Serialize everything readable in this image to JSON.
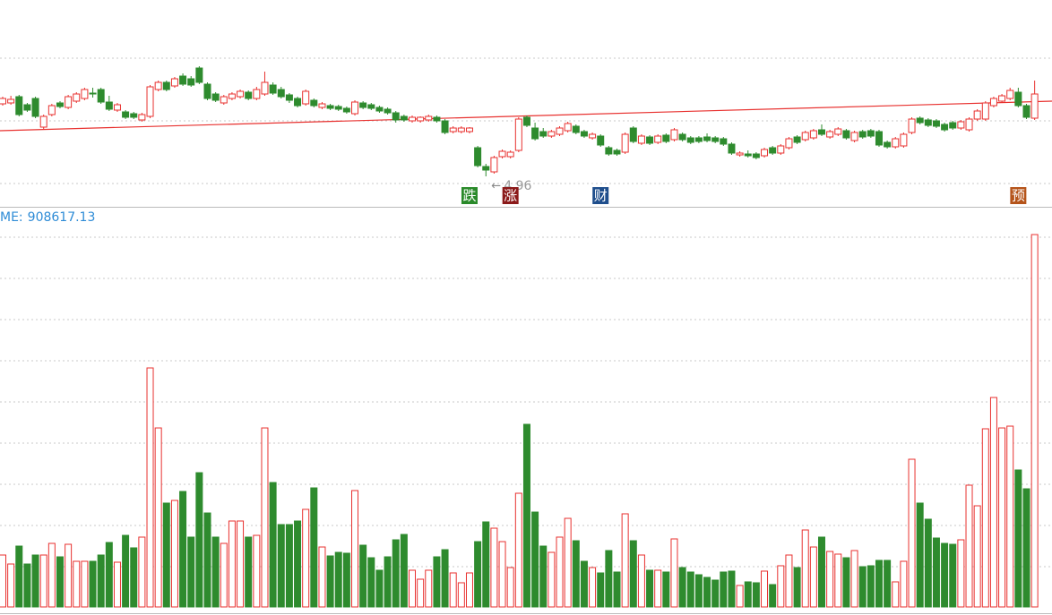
{
  "chart_data": {
    "type": "candlestick",
    "ohlc_order": [
      "open",
      "high",
      "low",
      "close"
    ],
    "up_color": "#e8312f",
    "down_color": "#2e8b2e",
    "trend_color": "#e8312f",
    "ylim": [
      4.61,
      6.93
    ],
    "volume_ylim": [
      0,
      1000000
    ],
    "trend_line": [
      5.47,
      5.8
    ],
    "candles": [
      [
        5.77,
        5.85,
        5.75,
        5.83
      ],
      [
        5.78,
        5.86,
        5.76,
        5.82
      ],
      [
        5.85,
        5.87,
        5.63,
        5.65
      ],
      [
        5.76,
        5.78,
        5.68,
        5.7
      ],
      [
        5.83,
        5.85,
        5.61,
        5.63
      ],
      [
        5.51,
        5.65,
        5.49,
        5.63
      ],
      [
        5.65,
        5.77,
        5.63,
        5.75
      ],
      [
        5.78,
        5.8,
        5.72,
        5.74
      ],
      [
        5.73,
        5.87,
        5.71,
        5.85
      ],
      [
        5.8,
        5.9,
        5.78,
        5.88
      ],
      [
        5.83,
        5.95,
        5.81,
        5.93
      ],
      [
        5.89,
        5.95,
        5.84,
        5.88
      ],
      [
        5.93,
        5.95,
        5.77,
        5.79
      ],
      [
        5.79,
        5.86,
        5.69,
        5.71
      ],
      [
        5.7,
        5.78,
        5.68,
        5.76
      ],
      [
        5.68,
        5.7,
        5.6,
        5.62
      ],
      [
        5.66,
        5.68,
        5.6,
        5.62
      ],
      [
        5.59,
        5.67,
        5.57,
        5.65
      ],
      [
        5.63,
        5.98,
        5.61,
        5.96
      ],
      [
        5.93,
        6.03,
        5.91,
        6.01
      ],
      [
        6.01,
        6.03,
        5.91,
        5.93
      ],
      [
        5.97,
        6.07,
        5.95,
        6.05
      ],
      [
        6.08,
        6.11,
        5.97,
        5.99
      ],
      [
        6.05,
        6.08,
        5.96,
        5.98
      ],
      [
        6.17,
        6.19,
        5.99,
        6.01
      ],
      [
        5.99,
        6.01,
        5.81,
        5.83
      ],
      [
        5.88,
        5.9,
        5.79,
        5.81
      ],
      [
        5.78,
        5.87,
        5.76,
        5.85
      ],
      [
        5.83,
        5.9,
        5.81,
        5.88
      ],
      [
        5.85,
        5.93,
        5.83,
        5.91
      ],
      [
        5.9,
        5.92,
        5.81,
        5.83
      ],
      [
        5.83,
        5.96,
        5.81,
        5.93
      ],
      [
        5.88,
        6.13,
        5.86,
        6.01
      ],
      [
        5.98,
        6.01,
        5.87,
        5.89
      ],
      [
        5.93,
        5.96,
        5.83,
        5.85
      ],
      [
        5.87,
        5.89,
        5.78,
        5.81
      ],
      [
        5.83,
        5.85,
        5.73,
        5.75
      ],
      [
        5.77,
        5.93,
        5.75,
        5.91
      ],
      [
        5.81,
        5.83,
        5.73,
        5.75
      ],
      [
        5.73,
        5.79,
        5.71,
        5.77
      ],
      [
        5.75,
        5.77,
        5.7,
        5.72
      ],
      [
        5.74,
        5.76,
        5.69,
        5.71
      ],
      [
        5.72,
        5.74,
        5.66,
        5.68
      ],
      [
        5.66,
        5.81,
        5.64,
        5.79
      ],
      [
        5.78,
        5.8,
        5.71,
        5.73
      ],
      [
        5.76,
        5.78,
        5.7,
        5.72
      ],
      [
        5.73,
        5.75,
        5.67,
        5.69
      ],
      [
        5.71,
        5.73,
        5.65,
        5.67
      ],
      [
        5.67,
        5.69,
        5.56,
        5.59
      ],
      [
        5.63,
        5.65,
        5.57,
        5.59
      ],
      [
        5.58,
        5.64,
        5.56,
        5.62
      ],
      [
        5.58,
        5.63,
        5.56,
        5.62
      ],
      [
        5.59,
        5.65,
        5.57,
        5.63
      ],
      [
        5.62,
        5.64,
        5.56,
        5.58
      ],
      [
        5.58,
        5.6,
        5.43,
        5.45
      ],
      [
        5.46,
        5.52,
        5.44,
        5.5
      ],
      [
        5.46,
        5.52,
        5.44,
        5.5
      ],
      [
        5.46,
        5.51,
        5.44,
        5.5
      ],
      [
        5.28,
        5.3,
        5.06,
        5.08
      ],
      [
        5.07,
        5.1,
        4.96,
        5.03
      ],
      [
        5.01,
        5.19,
        4.99,
        5.17
      ],
      [
        5.18,
        5.26,
        5.16,
        5.24
      ],
      [
        5.18,
        5.25,
        5.16,
        5.23
      ],
      [
        5.25,
        5.62,
        5.23,
        5.6
      ],
      [
        5.62,
        5.64,
        5.51,
        5.53
      ],
      [
        5.5,
        5.56,
        5.36,
        5.38
      ],
      [
        5.46,
        5.5,
        5.39,
        5.41
      ],
      [
        5.41,
        5.48,
        5.39,
        5.46
      ],
      [
        5.43,
        5.52,
        5.41,
        5.5
      ],
      [
        5.47,
        5.57,
        5.45,
        5.55
      ],
      [
        5.52,
        5.54,
        5.43,
        5.45
      ],
      [
        5.46,
        5.48,
        5.39,
        5.41
      ],
      [
        5.39,
        5.45,
        5.37,
        5.43
      ],
      [
        5.41,
        5.43,
        5.29,
        5.31
      ],
      [
        5.28,
        5.3,
        5.19,
        5.21
      ],
      [
        5.25,
        5.27,
        5.19,
        5.21
      ],
      [
        5.23,
        5.45,
        5.21,
        5.43
      ],
      [
        5.5,
        5.52,
        5.33,
        5.35
      ],
      [
        5.33,
        5.43,
        5.31,
        5.41
      ],
      [
        5.4,
        5.42,
        5.31,
        5.33
      ],
      [
        5.34,
        5.43,
        5.32,
        5.41
      ],
      [
        5.42,
        5.44,
        5.33,
        5.35
      ],
      [
        5.37,
        5.5,
        5.35,
        5.48
      ],
      [
        5.43,
        5.45,
        5.35,
        5.37
      ],
      [
        5.39,
        5.41,
        5.32,
        5.34
      ],
      [
        5.39,
        5.41,
        5.33,
        5.35
      ],
      [
        5.4,
        5.44,
        5.34,
        5.36
      ],
      [
        5.39,
        5.41,
        5.33,
        5.35
      ],
      [
        5.38,
        5.4,
        5.3,
        5.32
      ],
      [
        5.32,
        5.34,
        5.2,
        5.22
      ],
      [
        5.2,
        5.24,
        5.18,
        5.22
      ],
      [
        5.21,
        5.25,
        5.17,
        5.19
      ],
      [
        5.21,
        5.23,
        5.15,
        5.17
      ],
      [
        5.19,
        5.28,
        5.17,
        5.26
      ],
      [
        5.28,
        5.3,
        5.2,
        5.22
      ],
      [
        5.22,
        5.32,
        5.2,
        5.3
      ],
      [
        5.28,
        5.4,
        5.26,
        5.38
      ],
      [
        5.4,
        5.42,
        5.32,
        5.34
      ],
      [
        5.37,
        5.47,
        5.35,
        5.45
      ],
      [
        5.39,
        5.49,
        5.37,
        5.47
      ],
      [
        5.48,
        5.54,
        5.41,
        5.43
      ],
      [
        5.4,
        5.48,
        5.38,
        5.46
      ],
      [
        5.43,
        5.51,
        5.41,
        5.49
      ],
      [
        5.47,
        5.49,
        5.37,
        5.39
      ],
      [
        5.36,
        5.47,
        5.34,
        5.45
      ],
      [
        5.46,
        5.48,
        5.38,
        5.4
      ],
      [
        5.47,
        5.49,
        5.39,
        5.41
      ],
      [
        5.46,
        5.48,
        5.29,
        5.31
      ],
      [
        5.34,
        5.36,
        5.27,
        5.29
      ],
      [
        5.29,
        5.4,
        5.27,
        5.38
      ],
      [
        5.3,
        5.45,
        5.28,
        5.43
      ],
      [
        5.45,
        5.62,
        5.43,
        5.6
      ],
      [
        5.61,
        5.63,
        5.54,
        5.56
      ],
      [
        5.59,
        5.61,
        5.51,
        5.53
      ],
      [
        5.58,
        5.6,
        5.5,
        5.52
      ],
      [
        5.54,
        5.56,
        5.46,
        5.48
      ],
      [
        5.56,
        5.58,
        5.48,
        5.5
      ],
      [
        5.5,
        5.59,
        5.48,
        5.57
      ],
      [
        5.48,
        5.62,
        5.46,
        5.6
      ],
      [
        5.6,
        5.71,
        5.58,
        5.69
      ],
      [
        5.6,
        5.8,
        5.58,
        5.78
      ],
      [
        5.75,
        5.85,
        5.73,
        5.83
      ],
      [
        5.8,
        5.88,
        5.78,
        5.86
      ],
      [
        5.83,
        5.95,
        5.81,
        5.92
      ],
      [
        5.9,
        5.95,
        5.73,
        5.75
      ],
      [
        5.75,
        5.77,
        5.6,
        5.62
      ],
      [
        5.61,
        6.03,
        5.59,
        5.88
      ]
    ],
    "volume": [
      126700,
      104800,
      148500,
      104800,
      126700,
      126700,
      155100,
      122300,
      152900,
      111400,
      111400,
      111400,
      126700,
      157300,
      109200,
      174700,
      144200,
      170400,
      583200,
      436800,
      253400,
      259900,
      281800,
      170400,
      327600,
      229300,
      170400,
      155100,
      209700,
      209700,
      170400,
      174700,
      436800,
      303600,
      201000,
      201000,
      209700,
      238100,
      290500,
      146300,
      124500,
      133200,
      131100,
      284000,
      150700,
      120100,
      89600,
      122300,
      163800,
      176900,
      89600,
      67700,
      89600,
      122300,
      139800,
      83000,
      59000,
      83000,
      159400,
      207500,
      192200,
      159400,
      96100,
      277400,
      445600,
      231500,
      148500,
      133200,
      170400,
      216200,
      161600,
      111400,
      96100,
      83000,
      137600,
      85200,
      227200,
      161600,
      126700,
      89600,
      89600,
      85200,
      166000,
      96100,
      85200,
      78600,
      72100,
      65500,
      85200,
      87400,
      52400,
      61200,
      59000,
      87400,
      54600,
      100500,
      126700,
      96100,
      187800,
      146300,
      170400,
      135400,
      128900,
      120100,
      137600,
      98300,
      100500,
      113600,
      113600,
      61200,
      111400,
      360400,
      253400,
      214100,
      168200,
      155100,
      152900,
      163800,
      297100,
      246800,
      434700,
      511100,
      436800,
      441200,
      334200,
      288300,
      908617.13
    ],
    "volume_label": "ME:",
    "low_marker": {
      "candle": 59
    },
    "events": [
      {
        "label": "跌",
        "candle": 57,
        "color": "#2a8a2a"
      },
      {
        "label": "涨",
        "candle": 62,
        "color": "#8b1a1a"
      },
      {
        "label": "财",
        "candle": 73,
        "color": "#1f4e8c"
      },
      {
        "label": "预",
        "candle": 124,
        "color": "#b5541a"
      }
    ]
  }
}
